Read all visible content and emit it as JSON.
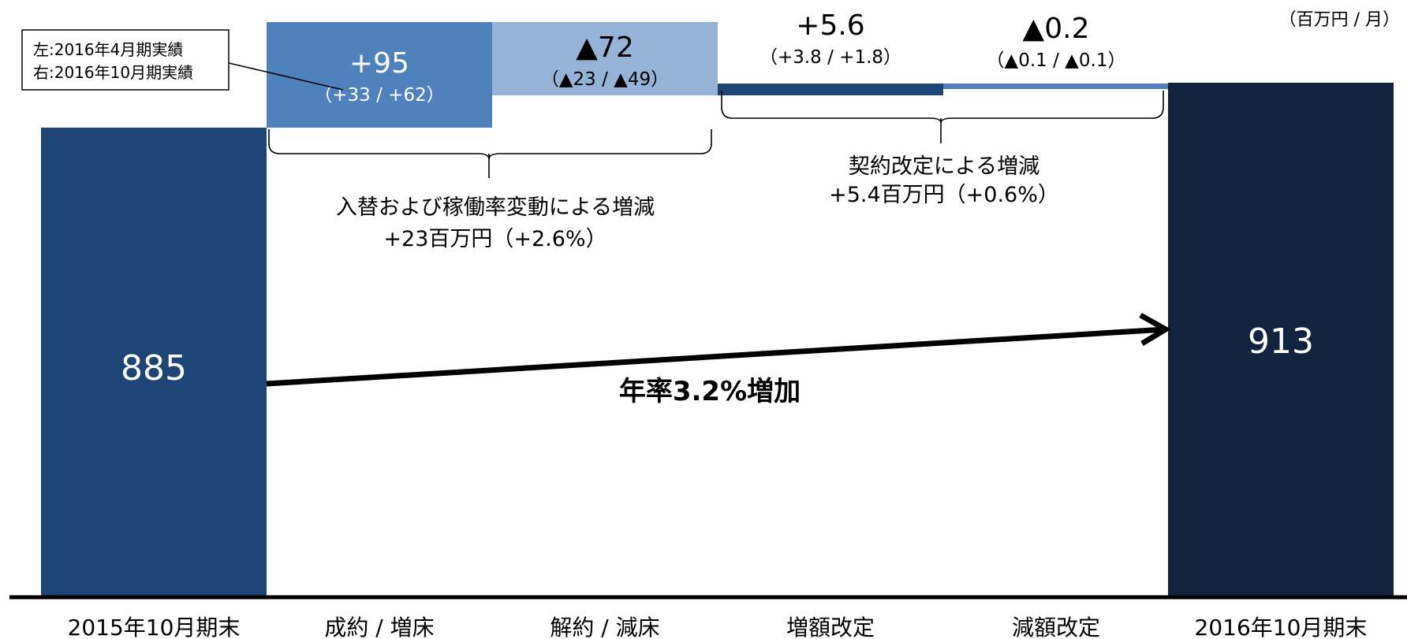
{
  "unit_label": "（百万円 / 月）",
  "legend_box": {
    "line1": "左:2016年4月期実績",
    "line2": "右:2016年10月期実績"
  },
  "colors": {
    "start": "#1f4476",
    "end": "#12233f",
    "increase": "#4f81bd",
    "decrease": "#95b3d7",
    "contract_up": "#1f4476",
    "contract_down": "#4f81bd",
    "arrow": "#000000"
  },
  "annotations": {
    "group1_line1": "入替および稼働率変動による増減",
    "group1_line2": "+23百万円（+2.6%）",
    "group2_line1": "契約改定による増減",
    "group2_line2": "+5.4百万円（+0.6%）",
    "arrow_label": "年率3.2%増加"
  },
  "chart_data": {
    "type": "bar",
    "subtype": "waterfall",
    "categories": [
      "2015年10月期末",
      "成約 / 増床",
      "解約 / 減床",
      "増額改定",
      "減額改定",
      "2016年10月期末"
    ],
    "values": [
      885,
      95,
      -72,
      5.6,
      -0.2,
      913
    ],
    "kinds": [
      "total",
      "increase",
      "decrease",
      "increase",
      "decrease",
      "total"
    ],
    "value_labels": [
      "885",
      "+95",
      "▲72",
      "+5.6",
      "▲0.2",
      "913"
    ],
    "sub_labels": [
      "",
      "（+33 / +62）",
      "（▲23 / ▲49）",
      "（+3.8 / +1.8）",
      "（▲0.1 / ▲0.1）",
      ""
    ]
  }
}
